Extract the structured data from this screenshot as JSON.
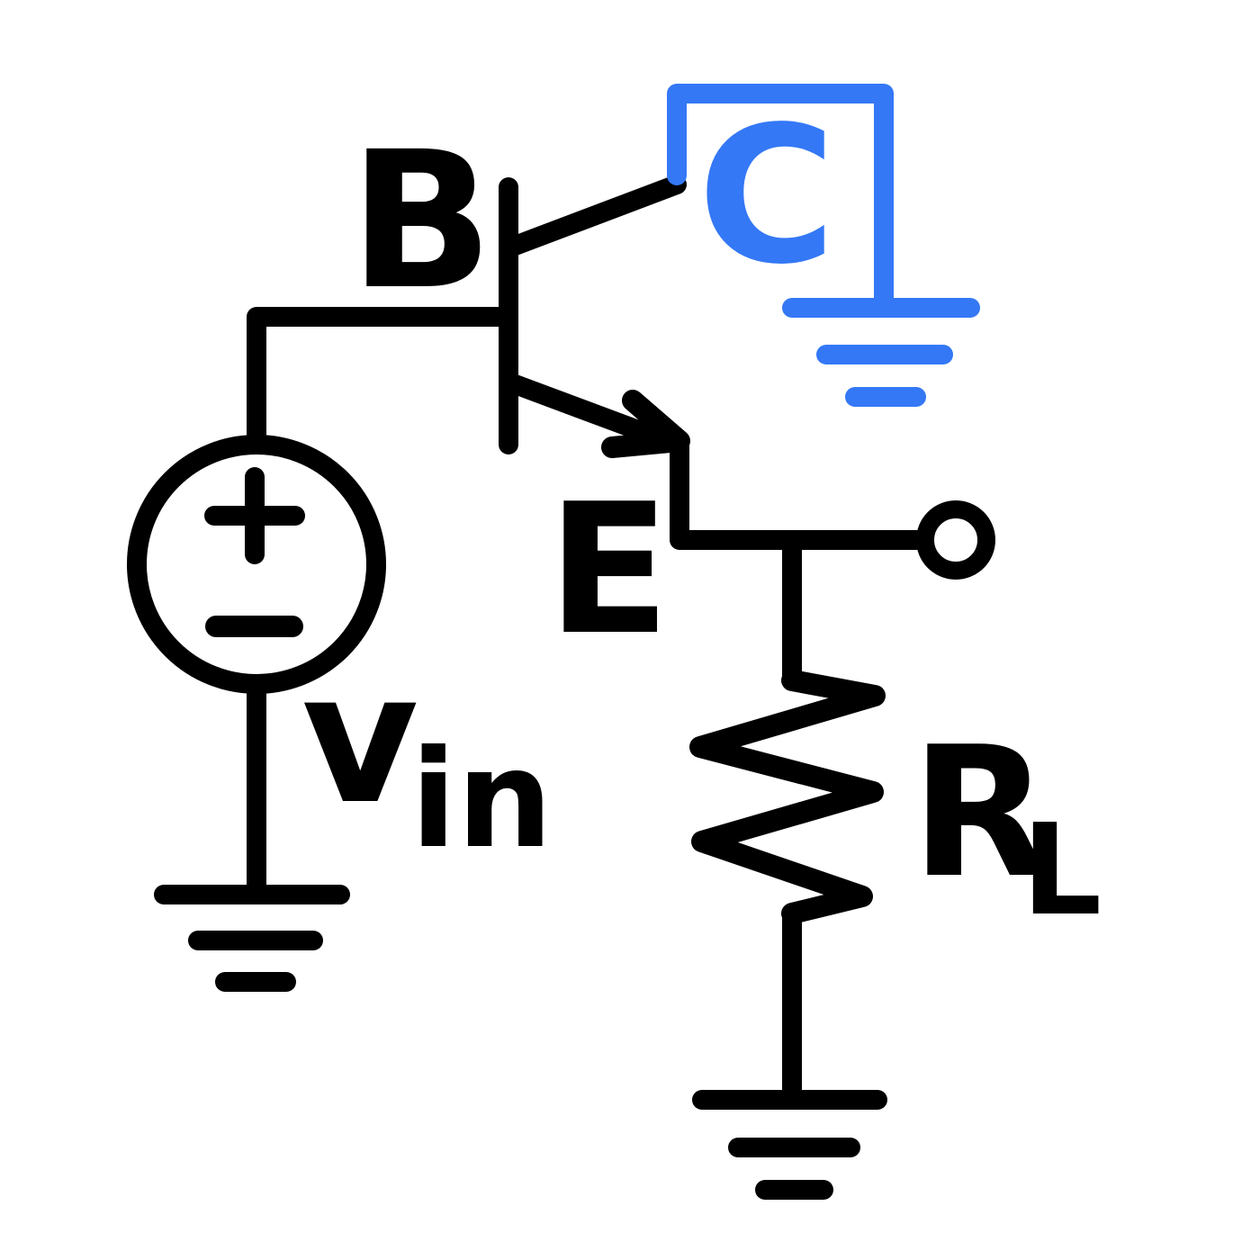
{
  "colors": {
    "ink": "#000000",
    "highlight": "#3478F6",
    "background": "#FFFFFF"
  },
  "labels": {
    "base": "B",
    "collector": "C",
    "emitter": "E",
    "source_main": "v",
    "source_sub": "in",
    "load_main": "R",
    "load_sub": "L",
    "plus": "+",
    "minus": "−"
  },
  "components": {
    "transistor": "npn-bjt",
    "source": "voltage-source",
    "load": "resistor",
    "output": "output-terminal",
    "grounds": [
      "source-ground",
      "load-ground",
      "collector-ground"
    ]
  }
}
